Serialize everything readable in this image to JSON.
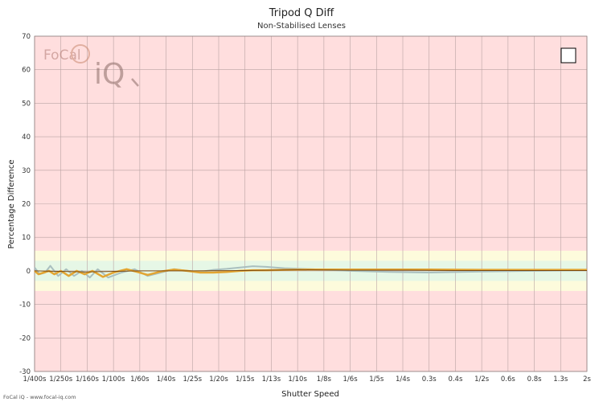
{
  "chart_data": {
    "type": "line",
    "title": "Tripod Q Diff",
    "subtitle": "Non-Stabilised Lenses",
    "xlabel": "Shutter Speed",
    "ylabel": "Percentage Difference",
    "ylim": [
      -30,
      70
    ],
    "yticks": [
      -30,
      -20,
      -10,
      0,
      10,
      20,
      30,
      40,
      50,
      60,
      70
    ],
    "categories": [
      "1/400s",
      "1/250s",
      "1/160s",
      "1/100s",
      "1/60s",
      "1/40s",
      "1/25s",
      "1/20s",
      "1/15s",
      "1/13s",
      "1/10s",
      "1/8s",
      "1/6s",
      "1/5s",
      "1/4s",
      "0.3s",
      "0.4s",
      "1/2s",
      "0.6s",
      "0.8s",
      "1.3s",
      "2s"
    ],
    "grid": true,
    "legend": "box top-right",
    "bands": [
      {
        "from": -6,
        "to": 6,
        "color": "#fdfbdc"
      },
      {
        "from": -3,
        "to": 3,
        "color": "#e6f7e6"
      }
    ],
    "background_color": "#ffdede",
    "series": [
      {
        "color": "#a9bfbf",
        "width": 2,
        "x": [
          0,
          0.2,
          0.4,
          0.6,
          0.9,
          1.2,
          1.5,
          1.8,
          2.1,
          2.4,
          2.8,
          3.3,
          3.8,
          4.3,
          4.8,
          5.3,
          5.8,
          6.3,
          6.8,
          7.3,
          7.8,
          8.3,
          8.8,
          9.5,
          10.5,
          12,
          13.5,
          15,
          17,
          19,
          21
        ],
        "y": [
          1,
          -1,
          -0.5,
          1.5,
          -1.5,
          0.5,
          -1.5,
          0,
          -2,
          0.5,
          -2,
          -0.5,
          0.5,
          -1.5,
          -0.5,
          0.5,
          0,
          -0.3,
          0.3,
          0.6,
          1.0,
          1.4,
          1.2,
          0.8,
          0.5,
          0,
          -0.3,
          -0.5,
          -0.2,
          0,
          0.2
        ]
      },
      {
        "color": "#e3a531",
        "width": 2.5,
        "x": [
          0,
          0.15,
          0.35,
          0.55,
          0.75,
          1.0,
          1.3,
          1.6,
          1.9,
          2.2,
          2.6,
          3.0,
          3.5,
          3.9,
          4.3,
          4.8,
          5.3,
          5.8,
          6.3,
          6.8,
          7.3,
          7.8,
          8.3,
          8.8,
          9.5,
          10.5,
          12,
          13.5,
          15,
          17,
          19,
          21
        ],
        "y": [
          0,
          -1,
          -0.5,
          0,
          -1,
          0,
          -1.5,
          0,
          -1,
          0,
          -1.8,
          -0.5,
          0.5,
          -0.3,
          -1.2,
          -0.2,
          0.4,
          0,
          -0.5,
          -0.5,
          -0.3,
          0,
          0.2,
          0.2,
          0.3,
          0.4,
          0.4,
          0.4,
          0.4,
          0.3,
          0.3,
          0.3
        ]
      },
      {
        "color": "#7a4a12",
        "width": 1,
        "x": [
          0,
          2,
          4,
          6,
          8,
          10,
          12,
          14,
          16,
          18,
          20,
          21
        ],
        "y": [
          0,
          -0.3,
          0,
          0,
          0.1,
          0.3,
          0.2,
          0.2,
          0.1,
          0.1,
          0.1,
          0.1
        ]
      }
    ]
  },
  "watermark": {
    "line1": "FoCal",
    "line2": "iQ"
  },
  "footer_text": "FoCal iQ - www.focal-iq.com"
}
